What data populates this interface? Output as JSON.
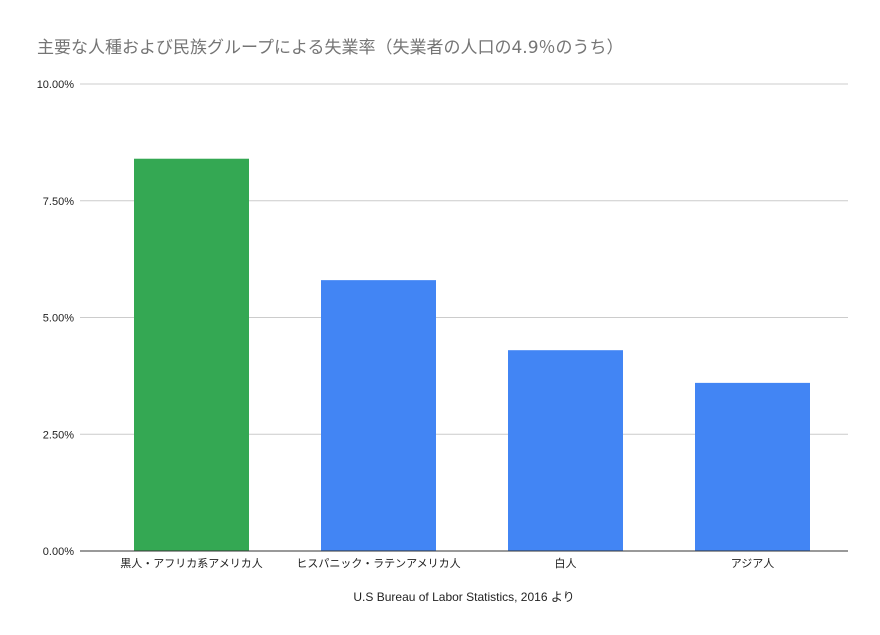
{
  "chart_data": {
    "type": "bar",
    "title": "主要な人種および民族グループによる失業率（失業者の人口の4.9％のうち）",
    "xlabel": "U.S Bureau of Labor Statistics, 2016 より",
    "ylabel": "",
    "categories": [
      "黒人・アフリカ系アメリカ人",
      "ヒスパニック・ラテンアメリカ人",
      "白人",
      "アジア人"
    ],
    "values": [
      8.4,
      5.8,
      4.3,
      3.6
    ],
    "bar_colors": [
      "#34a853",
      "#4285f4",
      "#4285f4",
      "#4285f4"
    ],
    "ylim": [
      0,
      10
    ],
    "yticks": [
      0,
      2.5,
      5,
      7.5,
      10
    ],
    "ytick_labels": [
      "0.00%",
      "2.50%",
      "5.00%",
      "7.50%",
      "10.00%"
    ],
    "grid": true,
    "legend": "none"
  }
}
